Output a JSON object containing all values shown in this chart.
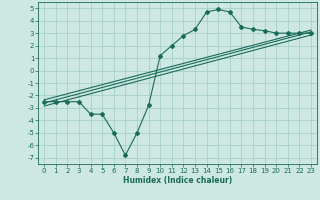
{
  "title": "",
  "xlabel": "Humidex (Indice chaleur)",
  "bg_color": "#cce8e0",
  "grid_color": "#a8d0cc",
  "line_color": "#1a6b5a",
  "xlim": [
    -0.5,
    23.5
  ],
  "ylim": [
    -7.5,
    5.5
  ],
  "xticks": [
    0,
    1,
    2,
    3,
    4,
    5,
    6,
    7,
    8,
    9,
    10,
    11,
    12,
    13,
    14,
    15,
    16,
    17,
    18,
    19,
    20,
    21,
    22,
    23
  ],
  "yticks": [
    -7,
    -6,
    -5,
    -4,
    -3,
    -2,
    -1,
    0,
    1,
    2,
    3,
    4,
    5
  ],
  "main_x": [
    0,
    1,
    2,
    3,
    4,
    5,
    6,
    7,
    8,
    9,
    10,
    11,
    12,
    13,
    14,
    15,
    16,
    17,
    18,
    19,
    20,
    21,
    22,
    23
  ],
  "main_y": [
    -2.5,
    -2.5,
    -2.5,
    -2.5,
    -3.5,
    -3.5,
    -5.0,
    -6.8,
    -5.0,
    -2.8,
    1.2,
    2.0,
    2.8,
    3.3,
    4.7,
    4.9,
    4.7,
    3.5,
    3.3,
    3.2,
    3.0,
    3.0,
    3.0,
    3.0
  ],
  "reg_lines": [
    {
      "x": [
        0,
        23
      ],
      "y": [
        -2.6,
        3.1
      ]
    },
    {
      "x": [
        0,
        23
      ],
      "y": [
        -2.35,
        3.25
      ]
    },
    {
      "x": [
        0,
        23
      ],
      "y": [
        -2.85,
        2.85
      ]
    }
  ],
  "xlabel_fontsize": 5.5,
  "tick_fontsize": 5,
  "linewidth": 0.8,
  "markersize": 2.0
}
